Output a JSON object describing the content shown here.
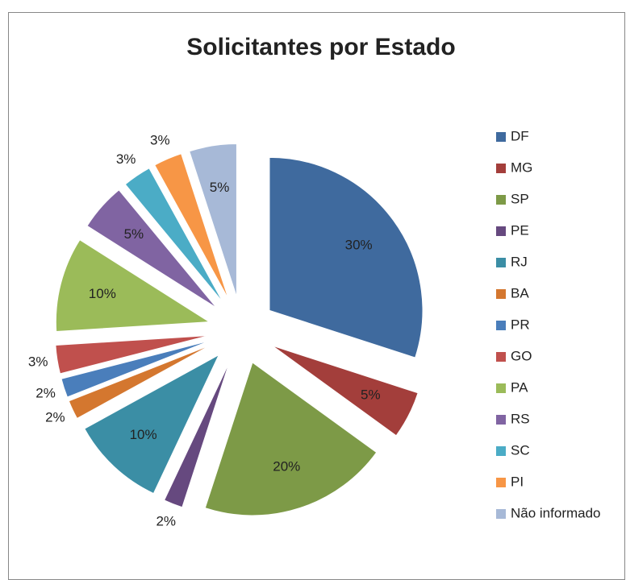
{
  "chart_data": {
    "type": "pie",
    "title": "Solicitantes por Estado",
    "categories": [
      "DF",
      "MG",
      "SP",
      "PE",
      "RJ",
      "BA",
      "PR",
      "GO",
      "PA",
      "RS",
      "SC",
      "PI",
      "Não informado"
    ],
    "values": [
      30,
      5,
      20,
      2,
      10,
      2,
      2,
      3,
      10,
      5,
      3,
      3,
      5
    ],
    "value_labels": [
      "30%",
      "5%",
      "20%",
      "2%",
      "10%",
      "2%",
      "2%",
      "3%",
      "10%",
      "5%",
      "3%",
      "3%",
      "5%"
    ],
    "colors": [
      "#3f6a9e",
      "#a33e3b",
      "#7d9a47",
      "#66497f",
      "#3b8ea5",
      "#d4772f",
      "#4a7ebb",
      "#c0504d",
      "#9bbb59",
      "#8064a2",
      "#4bacc6",
      "#f79646",
      "#a7b9d7"
    ],
    "legend": "right"
  }
}
